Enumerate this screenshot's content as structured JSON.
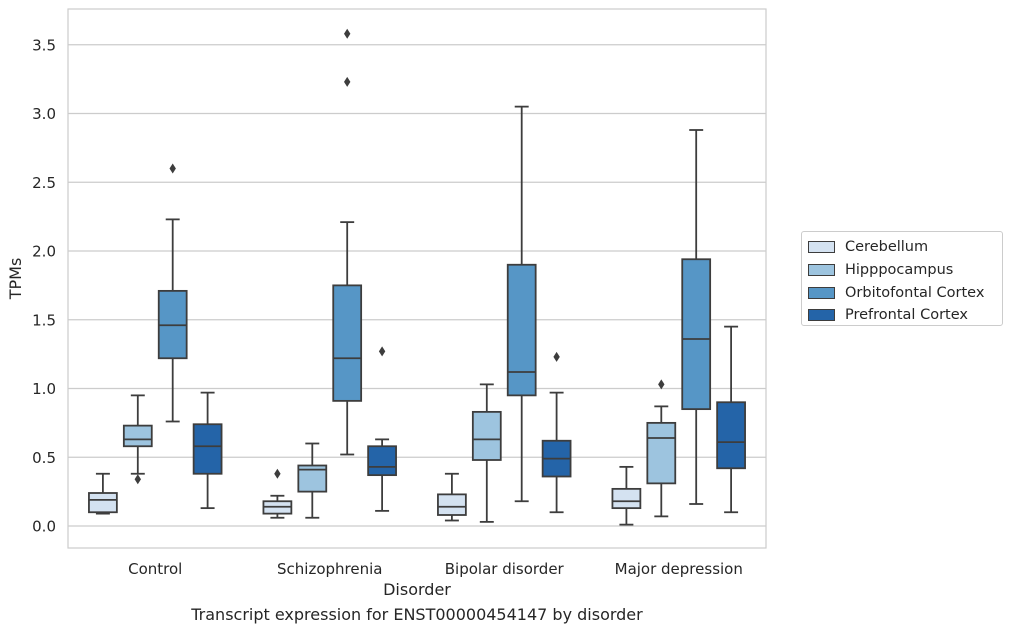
{
  "chart_data": {
    "type": "boxplot",
    "xlabel": "Disorder",
    "ylabel": "TPMs",
    "caption": "Transcript expression for ENST00000454147 by disorder",
    "categories": [
      "Control",
      "Schizophrenia",
      "Bipolar disorder",
      "Major depression"
    ],
    "ylim": [
      -0.16,
      3.76
    ],
    "yticks": [
      0.0,
      0.5,
      1.0,
      1.5,
      2.0,
      2.5,
      3.0,
      3.5
    ],
    "ytick_labels": [
      "0.0",
      "0.5",
      "1.0",
      "1.5",
      "2.0",
      "2.5",
      "3.0",
      "3.5"
    ],
    "grid": "horizontal",
    "legend_position": "right",
    "series": [
      {
        "name": "Cerebellum",
        "color": "#d4e2f1",
        "boxes": [
          {
            "whislo": 0.09,
            "q1": 0.1,
            "med": 0.19,
            "q3": 0.24,
            "whishi": 0.38,
            "fliers": []
          },
          {
            "whislo": 0.06,
            "q1": 0.09,
            "med": 0.14,
            "q3": 0.18,
            "whishi": 0.22,
            "fliers": [
              0.38
            ]
          },
          {
            "whislo": 0.04,
            "q1": 0.08,
            "med": 0.14,
            "q3": 0.23,
            "whishi": 0.38,
            "fliers": []
          },
          {
            "whislo": 0.01,
            "q1": 0.13,
            "med": 0.18,
            "q3": 0.27,
            "whishi": 0.43,
            "fliers": []
          }
        ]
      },
      {
        "name": "Hipppocampus",
        "color": "#9dc4df",
        "boxes": [
          {
            "whislo": 0.38,
            "q1": 0.58,
            "med": 0.63,
            "q3": 0.73,
            "whishi": 0.95,
            "fliers": [
              0.34
            ]
          },
          {
            "whislo": 0.06,
            "q1": 0.25,
            "med": 0.41,
            "q3": 0.44,
            "whishi": 0.6,
            "fliers": []
          },
          {
            "whislo": 0.03,
            "q1": 0.48,
            "med": 0.63,
            "q3": 0.83,
            "whishi": 1.03,
            "fliers": []
          },
          {
            "whislo": 0.07,
            "q1": 0.31,
            "med": 0.64,
            "q3": 0.75,
            "whishi": 0.87,
            "fliers": [
              1.03
            ]
          }
        ]
      },
      {
        "name": "Orbitofontal Cortex",
        "color": "#5696c6",
        "boxes": [
          {
            "whislo": 0.76,
            "q1": 1.22,
            "med": 1.46,
            "q3": 1.71,
            "whishi": 2.23,
            "fliers": [
              2.6
            ]
          },
          {
            "whislo": 0.52,
            "q1": 0.91,
            "med": 1.22,
            "q3": 1.75,
            "whishi": 2.21,
            "fliers": [
              3.23,
              3.58
            ]
          },
          {
            "whislo": 0.18,
            "q1": 0.95,
            "med": 1.12,
            "q3": 1.9,
            "whishi": 3.05,
            "fliers": []
          },
          {
            "whislo": 0.16,
            "q1": 0.85,
            "med": 1.36,
            "q3": 1.94,
            "whishi": 2.88,
            "fliers": []
          }
        ]
      },
      {
        "name": "Prefrontal Cortex",
        "color": "#2464a8",
        "boxes": [
          {
            "whislo": 0.13,
            "q1": 0.38,
            "med": 0.58,
            "q3": 0.74,
            "whishi": 0.97,
            "fliers": []
          },
          {
            "whislo": 0.11,
            "q1": 0.37,
            "med": 0.43,
            "q3": 0.58,
            "whishi": 0.63,
            "fliers": [
              1.27
            ]
          },
          {
            "whislo": 0.1,
            "q1": 0.36,
            "med": 0.49,
            "q3": 0.62,
            "whishi": 0.97,
            "fliers": [
              1.23
            ]
          },
          {
            "whislo": 0.1,
            "q1": 0.42,
            "med": 0.61,
            "q3": 0.9,
            "whishi": 1.45,
            "fliers": []
          }
        ]
      }
    ]
  }
}
